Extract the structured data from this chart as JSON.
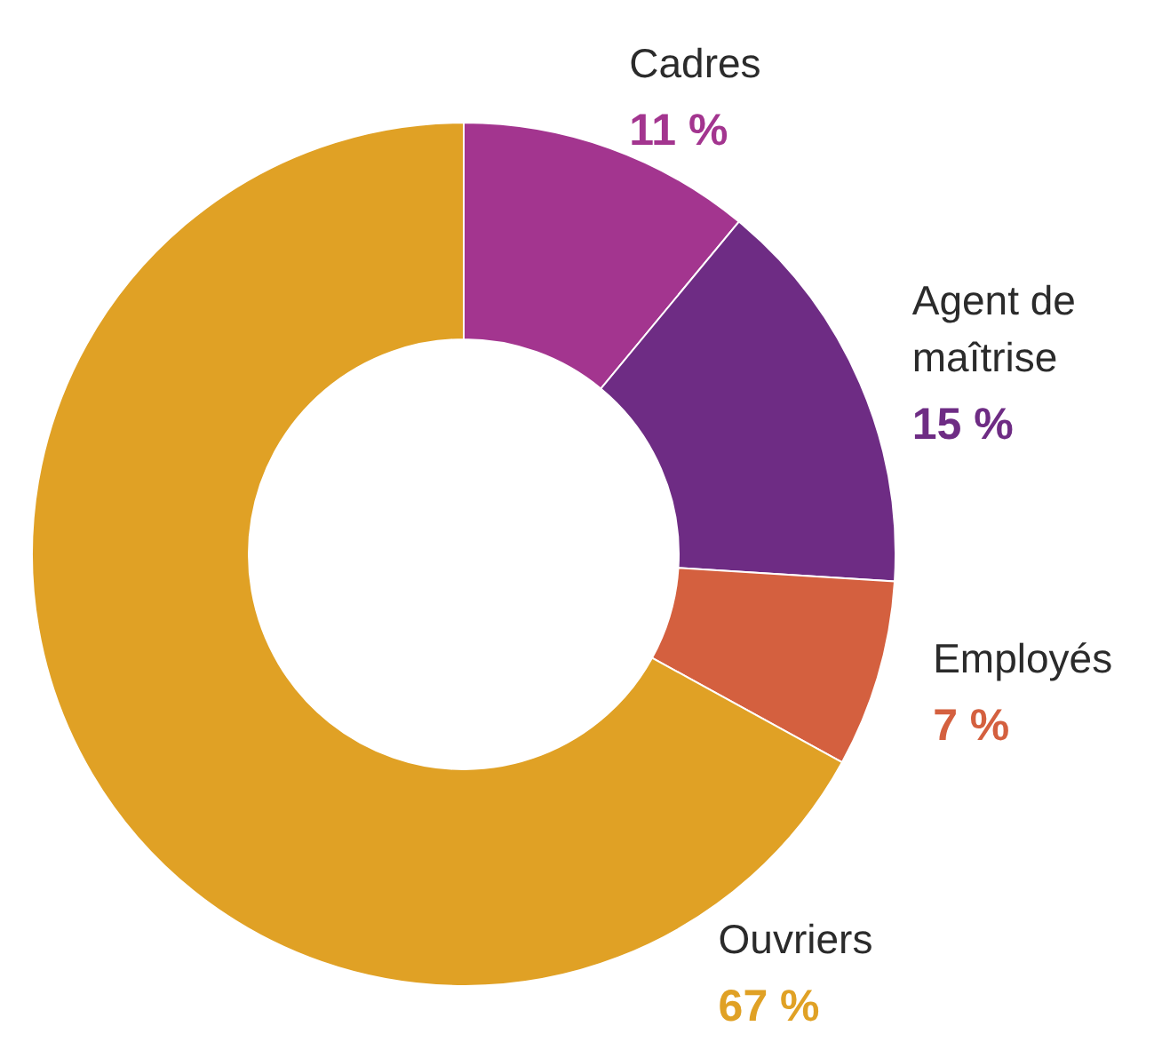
{
  "chart_data": {
    "type": "donut",
    "categories": [
      "Cadres",
      "Agent de maîtrise",
      "Employés",
      "Ouvriers"
    ],
    "values": [
      11,
      15,
      7,
      67
    ],
    "colors": [
      "#a3358f",
      "#6e2c84",
      "#d4603f",
      "#e0a125"
    ],
    "value_labels": [
      "11 %",
      "15 %",
      "7 %",
      "67 %"
    ]
  }
}
